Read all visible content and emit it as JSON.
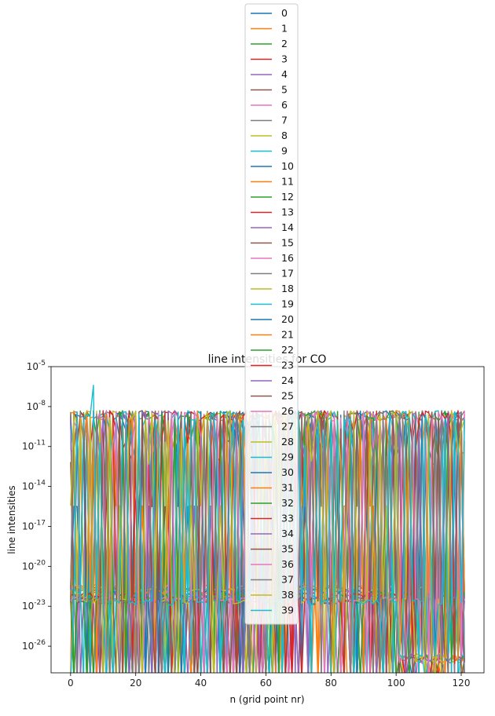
{
  "chart_data": {
    "type": "line",
    "title": "line intensities for CO",
    "xlabel": "n (grid point nr)",
    "ylabel": "line intensities",
    "yscale": "log",
    "xlim": [
      -6,
      127
    ],
    "ylim": [
      -28,
      -5
    ],
    "x_ticks": [
      0,
      20,
      40,
      60,
      80,
      100,
      120
    ],
    "x_tick_labels": [
      "0",
      "20",
      "40",
      "60",
      "80",
      "100",
      "120"
    ],
    "y_ticks": [
      -5,
      -8,
      -11,
      -14,
      -17,
      -20,
      -23,
      -26
    ],
    "y_tick_labels": [
      "10^-5",
      "10^-8",
      "10^-11",
      "10^-14",
      "10^-17",
      "10^-20",
      "10^-23",
      "10^-26"
    ],
    "legend_placement": "top-center",
    "n_points": 122,
    "series_names": [
      "0",
      "1",
      "2",
      "3",
      "4",
      "5",
      "6",
      "7",
      "8",
      "9",
      "10",
      "11",
      "12",
      "13",
      "14",
      "15",
      "16",
      "17",
      "18",
      "19",
      "20",
      "21",
      "22",
      "23",
      "24",
      "25",
      "26",
      "27",
      "28",
      "29",
      "30",
      "31",
      "32",
      "33",
      "34",
      "35",
      "36",
      "37",
      "38",
      "39"
    ],
    "series_colors": [
      "#1f77b4",
      "#ff7f0e",
      "#2ca02c",
      "#d62728",
      "#9467bd",
      "#8c564b",
      "#e377c2",
      "#7f7f7f",
      "#bcbd22",
      "#17becf"
    ],
    "notes": "40 series of log10 line intensities over grid points 0-121; values oscillate between ~1e-22 and ~1e-8, with a peak near 1e-6 at n=7 (series 39) and a floor band near 1e-27 for n>100."
  }
}
